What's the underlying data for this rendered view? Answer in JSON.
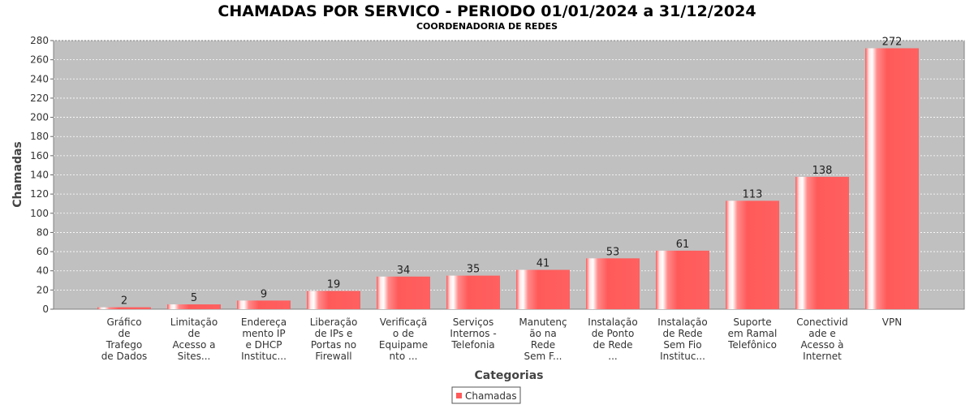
{
  "chart_data": {
    "type": "bar",
    "title": "CHAMADAS POR SERVICO - PERIODO 01/01/2024 a 31/12/2024",
    "subtitle": "COORDENADORIA DE REDES",
    "xlabel": "Categorias",
    "ylabel": "Chamadas",
    "ylim": [
      0,
      280
    ],
    "yticks": [
      0,
      20,
      40,
      60,
      80,
      100,
      120,
      140,
      160,
      180,
      200,
      220,
      240,
      260,
      280
    ],
    "grid": true,
    "legend_position": "bottom",
    "bar_color": "#ff5a5a",
    "plot_background": "#c0c0c0",
    "categories": [
      [
        "Gráfico",
        "de",
        "Trafego",
        "de Dados"
      ],
      [
        "Limitação",
        "de",
        "Acesso a",
        "Sites..."
      ],
      [
        "Endereça",
        "mento IP",
        "e DHCP",
        "Instituc..."
      ],
      [
        "Liberação",
        "de IPs e",
        "Portas no",
        "Firewall"
      ],
      [
        "Verificaçã",
        "o de",
        "Equipame",
        "nto ..."
      ],
      [
        "Serviços",
        "Internos -",
        "Telefonia"
      ],
      [
        "Manutenç",
        "ão na",
        "Rede",
        "Sem F..."
      ],
      [
        "Instalação",
        "de Ponto",
        "de Rede",
        "..."
      ],
      [
        "Instalação",
        "de Rede",
        "Sem Fio",
        "Instituc..."
      ],
      [
        "Suporte",
        "em Ramal",
        "Telefônico"
      ],
      [
        "Conectivid",
        "ade e",
        "Acesso à",
        "Internet"
      ],
      [
        "VPN"
      ]
    ],
    "series": [
      {
        "name": "Chamadas",
        "values": [
          2,
          5,
          9,
          19,
          34,
          35,
          41,
          53,
          61,
          113,
          138,
          272
        ]
      }
    ]
  }
}
